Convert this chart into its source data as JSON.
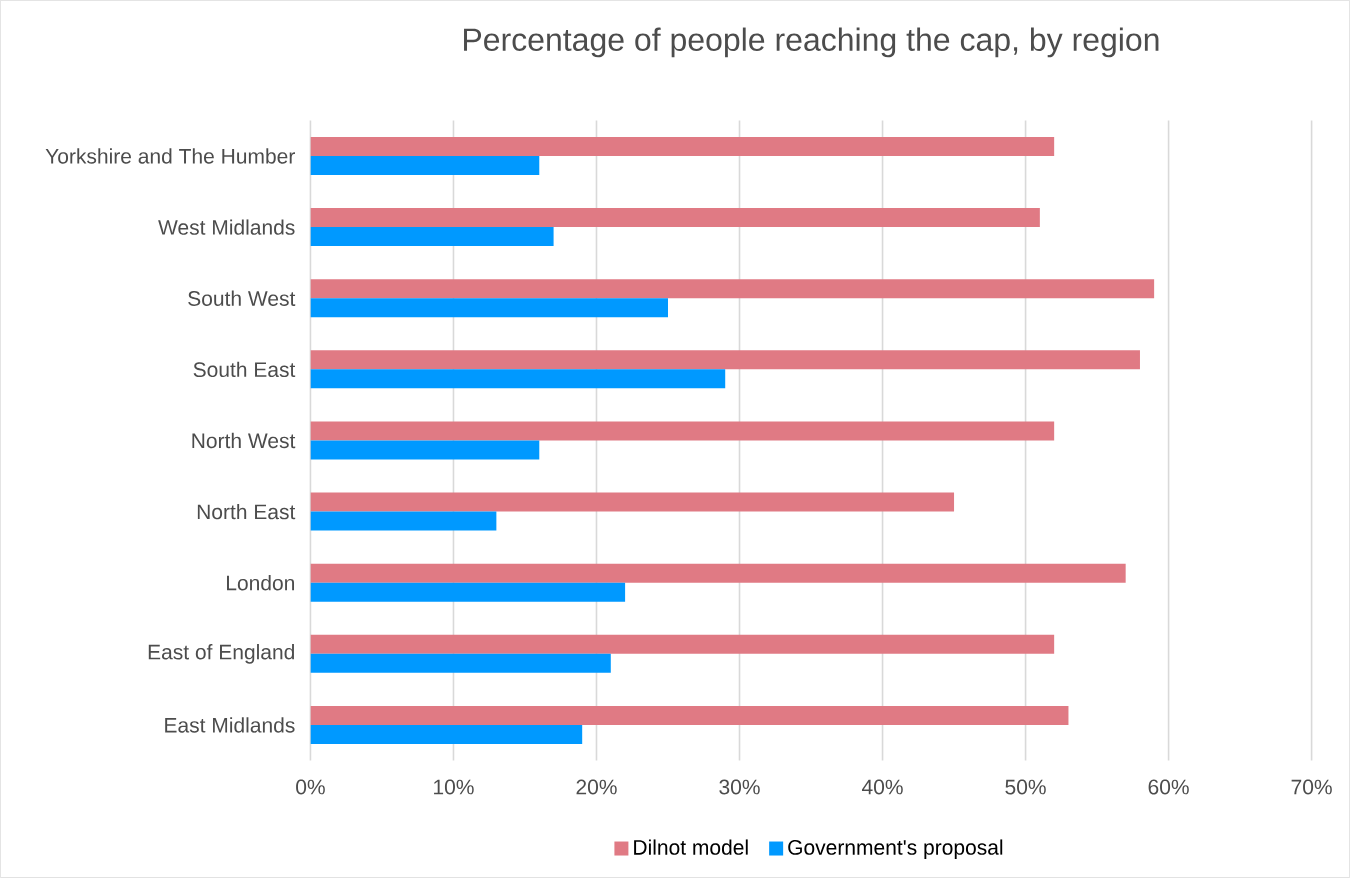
{
  "chart_data": {
    "type": "bar",
    "orientation": "horizontal",
    "title": "Percentage of people reaching the cap, by region",
    "categories": [
      "Yorkshire and The Humber",
      "West Midlands",
      "South West",
      "South East",
      "North West",
      "North East",
      "London",
      "East of England",
      "East Midlands"
    ],
    "series": [
      {
        "name": "Dilnot model",
        "color": "#e07a84",
        "values": [
          52,
          51,
          59,
          58,
          52,
          45,
          57,
          52,
          53
        ]
      },
      {
        "name": "Government's proposal",
        "color": "#0099ff",
        "values": [
          16,
          17,
          25,
          29,
          16,
          13,
          22,
          21,
          19
        ]
      }
    ],
    "xlim": [
      0,
      70
    ],
    "xticks": [
      {
        "value": 0,
        "label": "0%"
      },
      {
        "value": 10,
        "label": "10%"
      },
      {
        "value": 20,
        "label": "20%"
      },
      {
        "value": 30,
        "label": "30%"
      },
      {
        "value": 40,
        "label": "40%"
      },
      {
        "value": 50,
        "label": "50%"
      },
      {
        "value": 60,
        "label": "60%"
      },
      {
        "value": 70,
        "label": "70%"
      }
    ],
    "grid": "x",
    "legend": "bottom"
  }
}
